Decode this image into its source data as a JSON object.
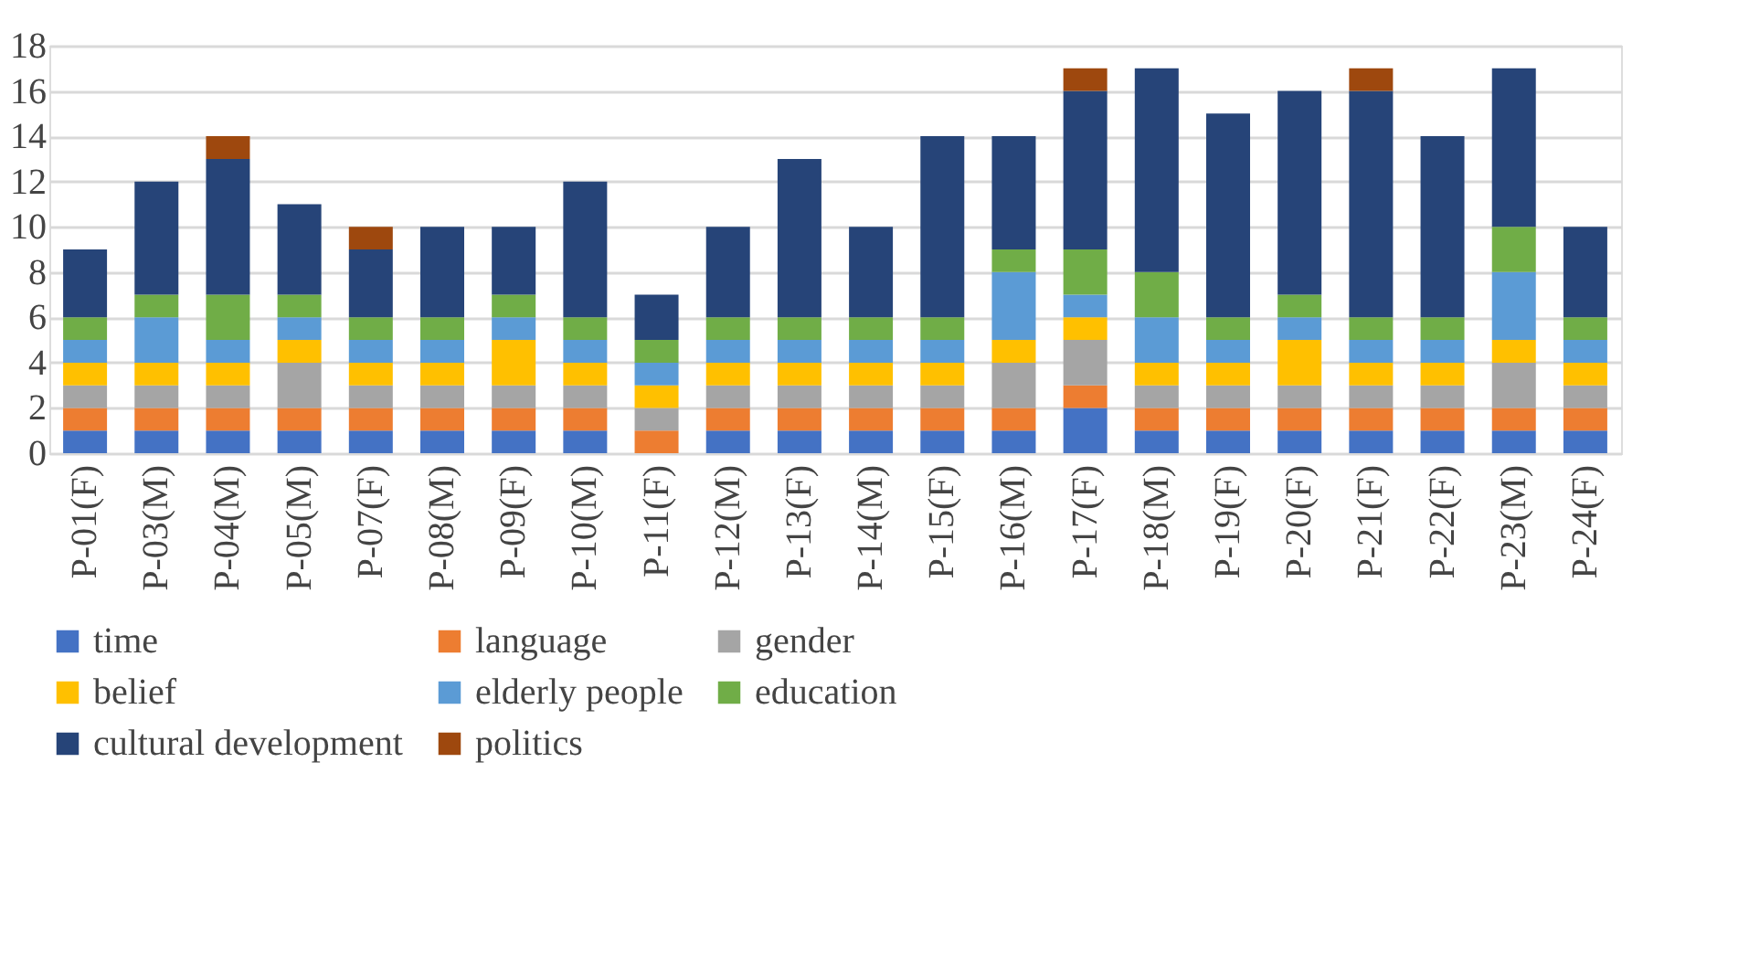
{
  "chart_data": {
    "type": "bar",
    "stacked": true,
    "categories": [
      "P-01(F)",
      "P-03(M)",
      "P-04(M)",
      "P-05(M)",
      "P-07(F)",
      "P-08(M)",
      "P-09(F)",
      "P-10(M)",
      "P-11(F)",
      "P-12(M)",
      "P-13(F)",
      "P-14(M)",
      "P-15(F)",
      "P-16(M)",
      "P-17(F)",
      "P-18(M)",
      "P-19(F)",
      "P-20(F)",
      "P-21(F)",
      "P-22(F)",
      "P-23(M)",
      "P-24(F)"
    ],
    "series": [
      {
        "name": "time",
        "color": "#4472c4",
        "values": [
          1,
          1,
          1,
          1,
          1,
          1,
          1,
          1,
          0,
          1,
          1,
          1,
          1,
          1,
          2,
          1,
          1,
          1,
          1,
          1,
          1,
          1
        ]
      },
      {
        "name": "language",
        "color": "#ed7d31",
        "values": [
          1,
          1,
          1,
          1,
          1,
          1,
          1,
          1,
          1,
          1,
          1,
          1,
          1,
          1,
          1,
          1,
          1,
          1,
          1,
          1,
          1,
          1
        ]
      },
      {
        "name": "gender",
        "color": "#a5a5a5",
        "values": [
          1,
          1,
          1,
          2,
          1,
          1,
          1,
          1,
          1,
          1,
          1,
          1,
          1,
          2,
          2,
          1,
          1,
          1,
          1,
          1,
          2,
          1
        ]
      },
      {
        "name": "belief",
        "color": "#ffc000",
        "values": [
          1,
          1,
          1,
          1,
          1,
          1,
          2,
          1,
          1,
          1,
          1,
          1,
          1,
          1,
          1,
          1,
          1,
          2,
          1,
          1,
          1,
          1
        ]
      },
      {
        "name": "elderly people",
        "color": "#5b9bd5",
        "values": [
          1,
          2,
          1,
          1,
          1,
          1,
          1,
          1,
          1,
          1,
          1,
          1,
          1,
          3,
          1,
          2,
          1,
          1,
          1,
          1,
          3,
          1
        ]
      },
      {
        "name": "education",
        "color": "#70ad47",
        "values": [
          1,
          1,
          2,
          1,
          1,
          1,
          1,
          1,
          1,
          1,
          1,
          1,
          1,
          1,
          2,
          2,
          1,
          1,
          1,
          1,
          2,
          1
        ]
      },
      {
        "name": "cultural development",
        "color": "#264478",
        "values": [
          3,
          5,
          6,
          4,
          3,
          4,
          3,
          6,
          2,
          4,
          7,
          4,
          8,
          5,
          7,
          9,
          9,
          9,
          10,
          8,
          7,
          4
        ]
      },
      {
        "name": "politics",
        "color": "#9e480e",
        "values": [
          0,
          0,
          1,
          0,
          1,
          0,
          0,
          0,
          0,
          0,
          0,
          0,
          0,
          0,
          1,
          0,
          0,
          0,
          1,
          0,
          0,
          0
        ]
      }
    ],
    "ylim": [
      0,
      18
    ],
    "yticks": [
      0,
      2,
      4,
      6,
      8,
      10,
      12,
      14,
      16,
      18
    ],
    "grid": "y",
    "legend": "bottom"
  }
}
